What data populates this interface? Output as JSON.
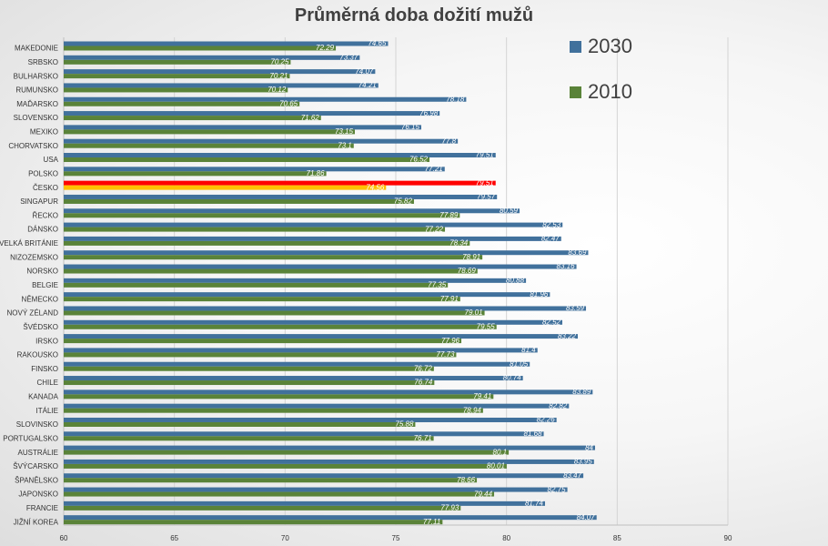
{
  "chart_data": {
    "type": "bar",
    "orientation": "horizontal",
    "title": "Průměrná doba dožití mužů",
    "xlabel": "",
    "ylabel": "",
    "xlim": [
      60,
      90
    ],
    "x_ticks": [
      60,
      65,
      70,
      75,
      80,
      85,
      90
    ],
    "grid": true,
    "legend_position": "top-right",
    "categories": [
      "MAKEDONIE",
      "SRBSKO",
      "BULHARSKO",
      "RUMUNSKO",
      "MAĎARSKO",
      "SLOVENSKO",
      "MEXIKO",
      "CHORVATSKO",
      "USA",
      "POLSKO",
      "ČESKO",
      "SINGAPUR",
      "ŘECKO",
      "DÁNSKO",
      "VELKÁ BRITÁNIE",
      "NIZOZEMSKO",
      "NORSKO",
      "BELGIE",
      "NĚMECKO",
      "NOVÝ ZÉLAND",
      "ŠVÉDSKO",
      "IRSKO",
      "RAKOUSKO",
      "FINSKO",
      "CHILE",
      "KANADA",
      "ITÁLIE",
      "SLOVINSKO",
      "PORTUGALSKO",
      "AUSTRÁLIE",
      "ŠVÝCARSKO",
      "ŠPANĚLSKO",
      "JAPONSKO",
      "FRANCIE",
      "JIŽNÍ KOREA"
    ],
    "series": [
      {
        "name": "2030",
        "color": "#41719c",
        "values": [
          74.65,
          73.37,
          74.07,
          74.21,
          78.18,
          76.98,
          76.15,
          77.8,
          79.51,
          77.21,
          79.51,
          79.57,
          80.59,
          82.53,
          82.47,
          83.69,
          83.16,
          80.88,
          81.96,
          83.59,
          82.52,
          83.22,
          81.4,
          81.05,
          80.74,
          83.89,
          82.82,
          82.26,
          81.68,
          84,
          83.95,
          83.47,
          82.75,
          81.74,
          84.07
        ],
        "labels": [
          "74.65",
          "73.37",
          "74.07",
          "74.21",
          "78.18",
          "76.98",
          "76.15",
          "77.8",
          "79.51",
          "77.21",
          "79.51",
          "79.57",
          "80.59",
          "82.53",
          "82.47",
          "83.69",
          "83.16",
          "80.88",
          "81.96",
          "83.59",
          "82.52",
          "83.22",
          "81.4",
          "81.05",
          "80.74",
          "83.89",
          "82.82",
          "82.26",
          "81.68",
          "84",
          "83.95",
          "83.47",
          "82.75",
          "81.74",
          "84.07"
        ]
      },
      {
        "name": "2010",
        "color": "#5a8339",
        "values": [
          72.29,
          70.25,
          70.21,
          70.12,
          70.65,
          71.62,
          73.15,
          73.1,
          76.52,
          71.86,
          74.56,
          75.82,
          77.89,
          77.22,
          78.34,
          78.91,
          78.69,
          77.35,
          77.91,
          79.01,
          79.55,
          77.96,
          77.73,
          76.72,
          76.74,
          79.41,
          78.94,
          75.88,
          76.71,
          80.1,
          80.01,
          78.66,
          79.44,
          77.93,
          77.11
        ],
        "labels": [
          "72.29",
          "70.25",
          "70.21",
          "70.12",
          "70.65",
          "71.62",
          "73.15",
          "73.1",
          "76.52",
          "71.86",
          "74.56",
          "75.82",
          "77.89",
          "77.22",
          "78.34",
          "78.91",
          "78.69",
          "77.35",
          "77.91",
          "79.01",
          "79.55",
          "77.96",
          "77.73",
          "76.72",
          "76.74",
          "79.41",
          "78.94",
          "75.88",
          "76.71",
          "80.1",
          "80.01",
          "78.66",
          "79.44",
          "77.93",
          "77.11"
        ]
      }
    ],
    "highlight": {
      "category": "ČESKO",
      "color_2030": "#ff0000",
      "color_2010": "#ffc000"
    }
  }
}
